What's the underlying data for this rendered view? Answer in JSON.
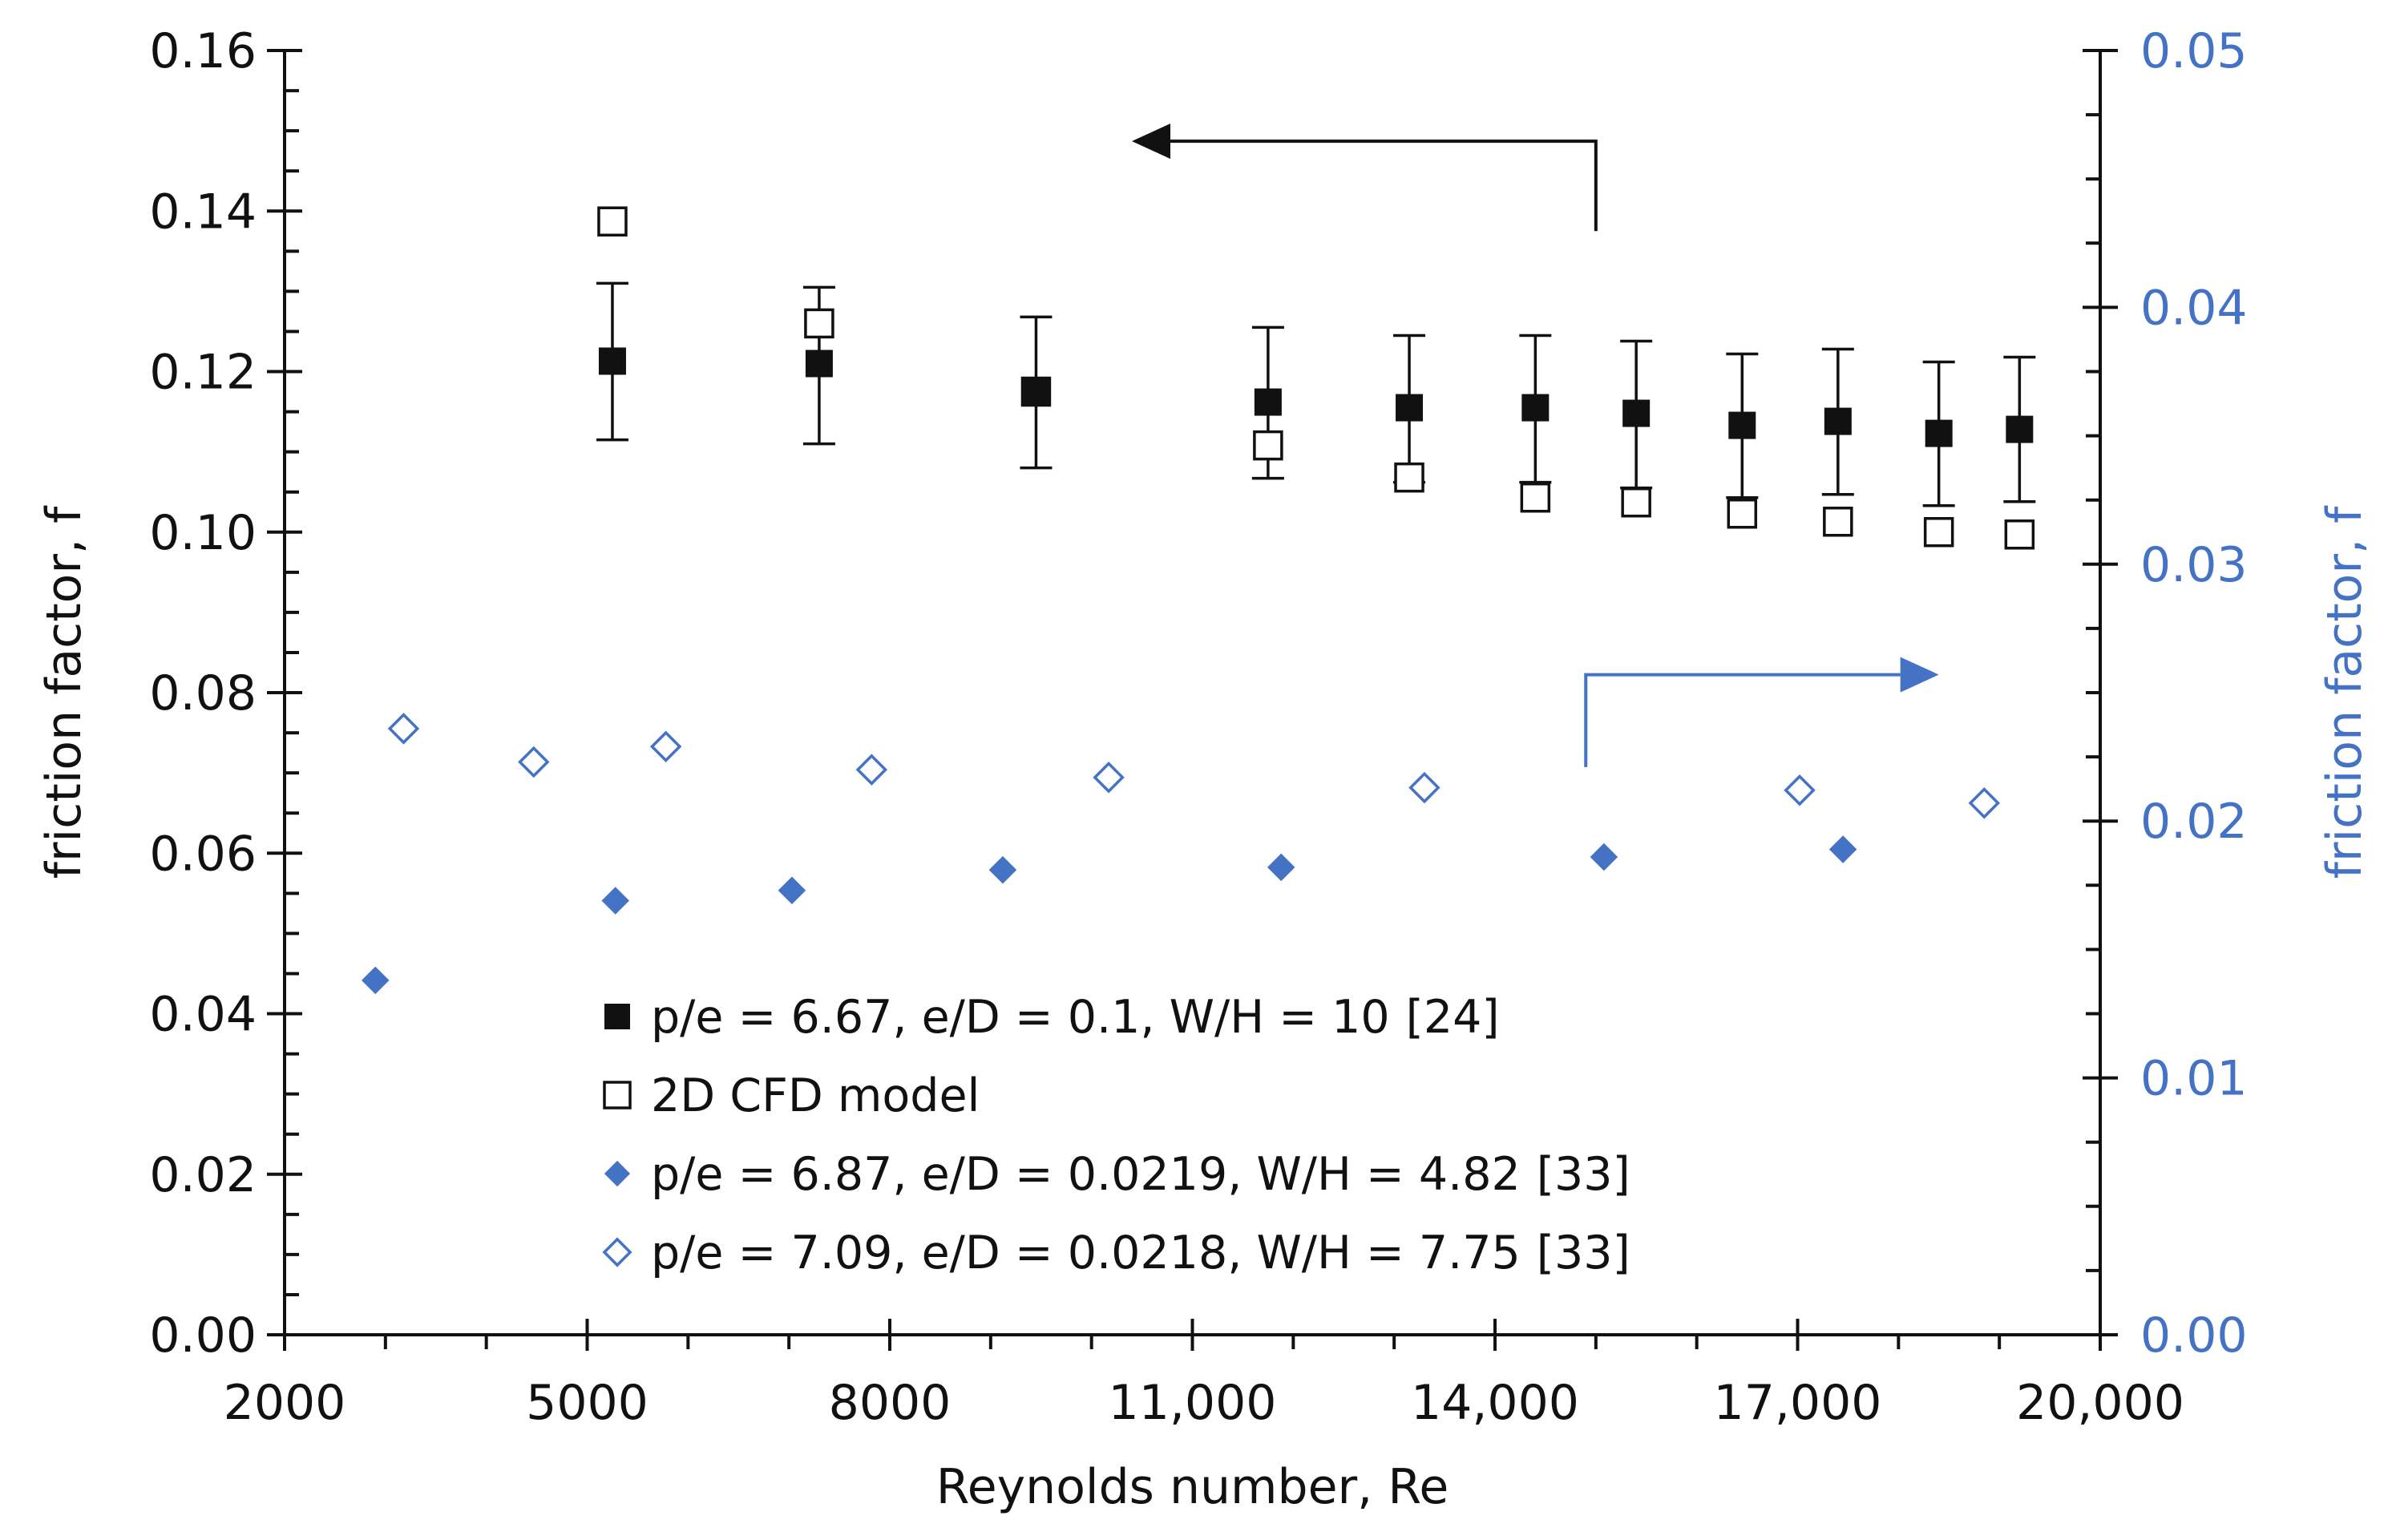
{
  "colors": {
    "black": "#111111",
    "blue": "#4472C4"
  },
  "chart_data": {
    "type": "scatter",
    "xlabel": "Reynolds number, Re",
    "ylabel": "friction factor, f",
    "y2label": "friction factor, f",
    "xlim": [
      2000,
      20000
    ],
    "ylim": [
      0,
      0.16
    ],
    "y2lim": [
      0,
      0.05
    ],
    "x_ticks": [
      2000,
      5000,
      8000,
      11000,
      14000,
      17000,
      20000
    ],
    "x_tick_labels": [
      "2000",
      "5000",
      "8000",
      "11,000",
      "14,000",
      "17,000",
      "20,000"
    ],
    "y_ticks": [
      0,
      0.02,
      0.04,
      0.06,
      0.08,
      0.1,
      0.12,
      0.14,
      0.16
    ],
    "y_tick_labels": [
      "0.00",
      "0.02",
      "0.04",
      "0.06",
      "0.08",
      "0.10",
      "0.12",
      "0.14",
      "0.16"
    ],
    "y2_ticks": [
      0,
      0.01,
      0.02,
      0.03,
      0.04,
      0.05
    ],
    "y2_tick_labels": [
      "0.00",
      "0.01",
      "0.02",
      "0.03",
      "0.04",
      "0.05"
    ],
    "series": [
      {
        "name": "p/e = 6.67, e/D = 0.1, W/H = 10",
        "ref": "[24]",
        "marker": "filled-square",
        "axis": "left",
        "color": "#111111",
        "points": [
          {
            "x": 5250,
            "y": 0.1213,
            "lo": 0.1115,
            "hi": 0.131
          },
          {
            "x": 7300,
            "y": 0.121,
            "lo": 0.111,
            "hi": 0.1305
          },
          {
            "x": 9450,
            "y": 0.1175,
            "lo": 0.108,
            "hi": 0.1268
          },
          {
            "x": 11750,
            "y": 0.1162,
            "lo": 0.1067,
            "hi": 0.1255
          },
          {
            "x": 13150,
            "y": 0.1155,
            "lo": 0.1062,
            "hi": 0.1245
          },
          {
            "x": 14400,
            "y": 0.1155,
            "lo": 0.1062,
            "hi": 0.1245
          },
          {
            "x": 15400,
            "y": 0.1148,
            "lo": 0.1055,
            "hi": 0.1238
          },
          {
            "x": 16450,
            "y": 0.1133,
            "lo": 0.1043,
            "hi": 0.1222
          },
          {
            "x": 17400,
            "y": 0.1138,
            "lo": 0.1047,
            "hi": 0.1228
          },
          {
            "x": 18400,
            "y": 0.1123,
            "lo": 0.1033,
            "hi": 0.1212
          },
          {
            "x": 19200,
            "y": 0.1128,
            "lo": 0.1038,
            "hi": 0.1218
          }
        ]
      },
      {
        "name": "2D CFD model",
        "ref": "",
        "marker": "open-square",
        "axis": "left",
        "color": "#111111",
        "points": [
          {
            "x": 5250,
            "y": 0.1387
          },
          {
            "x": 7300,
            "y": 0.126
          },
          {
            "x": 9450,
            "y": 0.1175
          },
          {
            "x": 11750,
            "y": 0.1108
          },
          {
            "x": 13150,
            "y": 0.1068
          },
          {
            "x": 14400,
            "y": 0.1043
          },
          {
            "x": 15400,
            "y": 0.1037
          },
          {
            "x": 16450,
            "y": 0.1023
          },
          {
            "x": 17400,
            "y": 0.1013
          },
          {
            "x": 18400,
            "y": 0.1
          },
          {
            "x": 19200,
            "y": 0.0997
          }
        ]
      },
      {
        "name": "p/e = 6.87, e/D = 0.0219, W/H = 4.82",
        "ref": "[33]",
        "marker": "filled-diamond",
        "axis": "right",
        "color": "#4472C4",
        "points": [
          {
            "x": 2900,
            "y": 0.0138
          },
          {
            "x": 5280,
            "y": 0.0169
          },
          {
            "x": 7030,
            "y": 0.0173
          },
          {
            "x": 9120,
            "y": 0.0181
          },
          {
            "x": 11880,
            "y": 0.0182
          },
          {
            "x": 15080,
            "y": 0.0186
          },
          {
            "x": 17450,
            "y": 0.0189
          }
        ]
      },
      {
        "name": "p/e = 7.09, e/D = 0.0218, W/H = 7.75",
        "ref": "[33]",
        "marker": "open-diamond",
        "axis": "right",
        "color": "#4472C4",
        "points": [
          {
            "x": 3180,
            "y": 0.0236
          },
          {
            "x": 4470,
            "y": 0.0223
          },
          {
            "x": 5780,
            "y": 0.0229
          },
          {
            "x": 7820,
            "y": 0.022
          },
          {
            "x": 10170,
            "y": 0.0217
          },
          {
            "x": 13300,
            "y": 0.0213
          },
          {
            "x": 17020,
            "y": 0.0212
          },
          {
            "x": 18850,
            "y": 0.0207
          }
        ]
      }
    ],
    "annotations": [
      {
        "type": "arrow",
        "points": [
          [
            15000,
            0.1375
          ],
          [
            15000,
            0.1487
          ],
          [
            10400,
            0.1487
          ]
        ],
        "color": "#111111",
        "axis": "left"
      },
      {
        "type": "arrow",
        "points": [
          [
            14900,
            0.0221
          ],
          [
            14900,
            0.0257
          ],
          [
            18400,
            0.0257
          ]
        ],
        "color": "#4472C4",
        "axis": "right"
      }
    ]
  }
}
